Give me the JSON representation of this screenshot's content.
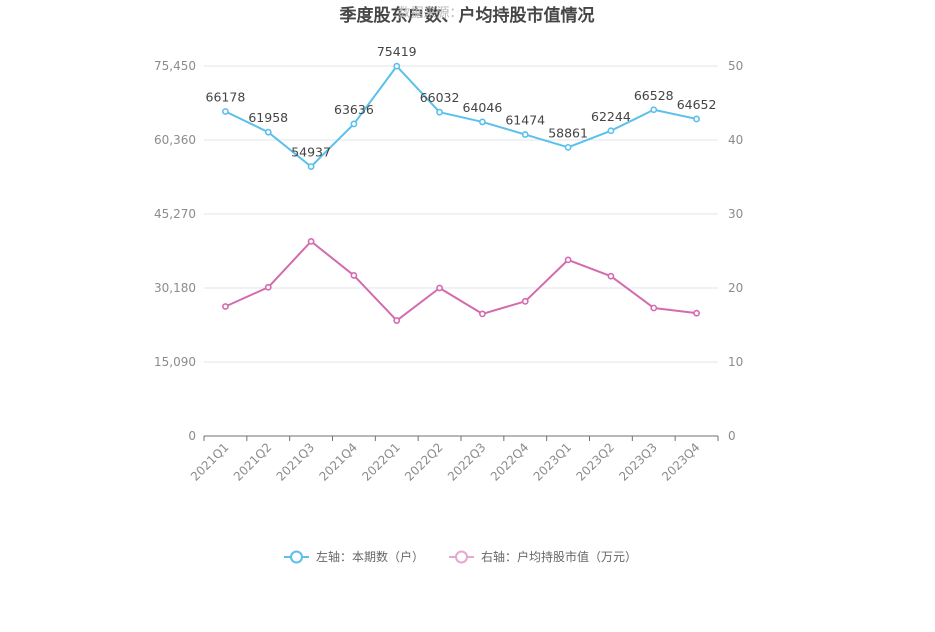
{
  "chart_data": {
    "type": "line",
    "title": "季度股东户数、户均持股市值情况",
    "watermark": "数据来源：",
    "categories": [
      "2021Q1",
      "2021Q2",
      "2021Q3",
      "2021Q4",
      "2022Q1",
      "2022Q2",
      "2022Q3",
      "2022Q4",
      "2023Q1",
      "2023Q2",
      "2023Q3",
      "2023Q4"
    ],
    "y_left": {
      "ticks": [
        "0",
        "15,090",
        "30,180",
        "45,270",
        "60,360",
        "75,450"
      ],
      "range": [
        0,
        75450
      ]
    },
    "y_right": {
      "ticks": [
        "0",
        "10",
        "20",
        "30",
        "40",
        "50"
      ],
      "range": [
        0,
        50
      ]
    },
    "series": [
      {
        "name": "左轴：本期数（户）",
        "axis": "left",
        "color": "#5bc0eb",
        "values": [
          66178,
          61958,
          54937,
          63636,
          75419,
          66032,
          64046,
          61474,
          58861,
          62244,
          66528,
          64652
        ],
        "labels": [
          "66178",
          "61958",
          "54937",
          "63636",
          "75419",
          "66032",
          "64046",
          "61474",
          "58861",
          "62244",
          "66528",
          "64652"
        ]
      },
      {
        "name": "右轴：户均持股市值（万元）",
        "axis": "right",
        "color": "#d36bae",
        "legend_color": "#e8a7cf",
        "values": [
          17.5,
          20.1,
          26.3,
          21.7,
          15.6,
          20.0,
          16.5,
          18.2,
          23.8,
          21.6,
          17.3,
          16.6
        ]
      }
    ],
    "grid": true,
    "legend_position": "bottom"
  }
}
